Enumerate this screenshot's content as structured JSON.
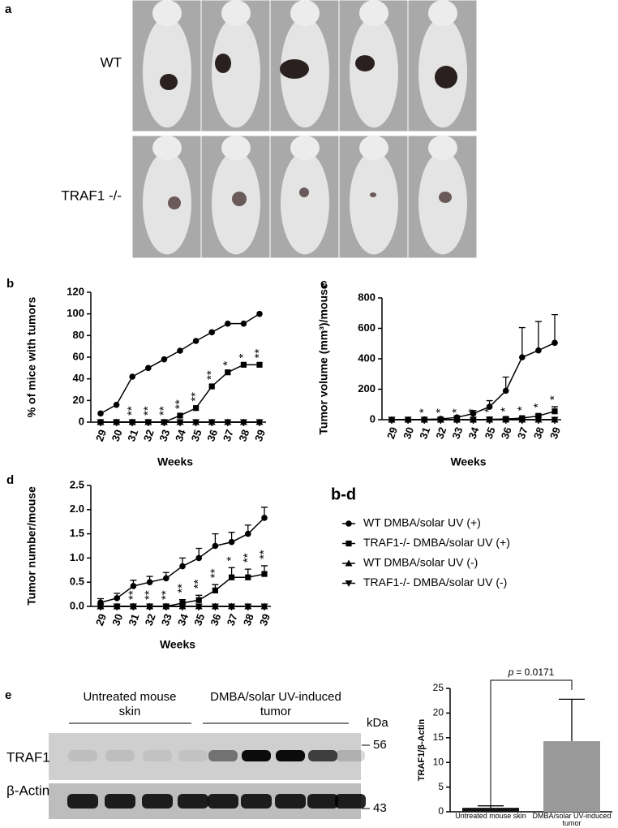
{
  "photos": {
    "label": "a",
    "rows": [
      "WT",
      "TRAF1 -/-"
    ]
  },
  "legend_title": "b-d",
  "chart_data": [
    {
      "type": "line",
      "label": "b",
      "ylabel": "% of mice with tumors",
      "xlabel": "Weeks",
      "categories": [
        29,
        30,
        31,
        32,
        33,
        34,
        35,
        36,
        37,
        38,
        39
      ],
      "ylim": [
        0,
        120
      ],
      "yticks": [
        0,
        20,
        40,
        60,
        80,
        100,
        120
      ],
      "series": [
        {
          "name": "WT DMBA/solar UV (+)",
          "color": "#000000",
          "marker": "circle",
          "values": [
            8,
            16,
            42,
            50,
            58,
            66,
            75,
            83,
            91,
            91,
            100
          ]
        },
        {
          "name": "TRAF1-/- DMBA/solar UV (+)",
          "color": "#000000",
          "marker": "square",
          "values": [
            0,
            0,
            0,
            0,
            0,
            6,
            13,
            33,
            46,
            53,
            53
          ]
        },
        {
          "name": "WT DMBA/solar UV (-)",
          "color": "#000000",
          "marker": "triangle-up",
          "values": [
            0,
            0,
            0,
            0,
            0,
            0,
            0,
            0,
            0,
            0,
            0
          ]
        },
        {
          "name": "TRAF1-/- DMBA/solar UV (-)",
          "color": "#000000",
          "marker": "triangle-down",
          "values": [
            0,
            0,
            0,
            0,
            0,
            0,
            0,
            0,
            0,
            0,
            0
          ]
        }
      ],
      "significance": [
        null,
        null,
        "**",
        "**",
        "**",
        "**",
        "**",
        "**",
        "*",
        "*",
        "**"
      ]
    },
    {
      "type": "line",
      "label": "c",
      "ylabel": "Tumor volume (mm³)/mouse",
      "xlabel": "Weeks",
      "categories": [
        29,
        30,
        31,
        32,
        33,
        34,
        35,
        36,
        37,
        38,
        39
      ],
      "ylim": [
        0,
        800
      ],
      "yticks": [
        0,
        200,
        400,
        600,
        800
      ],
      "series": [
        {
          "color": "#000000",
          "marker": "circle",
          "values": [
            0,
            0,
            2,
            5,
            15,
            40,
            85,
            190,
            410,
            455,
            505
          ],
          "errors": [
            0,
            0,
            2,
            5,
            10,
            20,
            40,
            90,
            195,
            190,
            185
          ]
        },
        {
          "color": "#000000",
          "marker": "square",
          "values": [
            0,
            0,
            0,
            0,
            0,
            0,
            2,
            5,
            10,
            25,
            55
          ],
          "errors": [
            0,
            0,
            0,
            0,
            0,
            0,
            2,
            3,
            5,
            10,
            30
          ]
        },
        {
          "color": "#000000",
          "marker": "triangle-up",
          "values": [
            0,
            0,
            0,
            0,
            0,
            0,
            0,
            0,
            0,
            0,
            0
          ]
        },
        {
          "color": "#000000",
          "marker": "triangle-down",
          "values": [
            0,
            0,
            0,
            0,
            0,
            0,
            0,
            0,
            0,
            0,
            0
          ]
        }
      ],
      "significance": [
        null,
        null,
        "*",
        "*",
        "*",
        "*",
        "*",
        "*",
        "*",
        "*",
        "*"
      ]
    },
    {
      "type": "line",
      "label": "d",
      "ylabel": "Tumor number/mouse",
      "xlabel": "Weeks",
      "categories": [
        29,
        30,
        31,
        32,
        33,
        34,
        35,
        36,
        37,
        38,
        39
      ],
      "ylim": [
        0,
        2.5
      ],
      "yticks": [
        {
          "value": 0,
          "label": "0.0"
        },
        {
          "value": 0.5,
          "label": "0.5"
        },
        {
          "value": 1,
          "label": "1.0"
        },
        {
          "value": 1.5,
          "label": "1.5"
        },
        {
          "value": 2,
          "label": "2.0"
        },
        {
          "value": 2.5,
          "label": "2.5"
        }
      ],
      "series": [
        {
          "color": "#000000",
          "marker": "circle",
          "values": [
            0.08,
            0.17,
            0.42,
            0.5,
            0.58,
            0.83,
            1.0,
            1.25,
            1.33,
            1.5,
            1.83
          ],
          "errors": [
            0.08,
            0.1,
            0.12,
            0.12,
            0.12,
            0.17,
            0.2,
            0.25,
            0.2,
            0.18,
            0.22
          ]
        },
        {
          "color": "#000000",
          "marker": "square",
          "values": [
            0,
            0,
            0,
            0,
            0,
            0.07,
            0.13,
            0.33,
            0.6,
            0.6,
            0.67
          ],
          "errors": [
            0,
            0,
            0,
            0,
            0,
            0.07,
            0.1,
            0.12,
            0.2,
            0.17,
            0.17
          ]
        },
        {
          "color": "#000000",
          "marker": "triangle-up",
          "values": [
            0,
            0,
            0,
            0,
            0,
            0,
            0,
            0,
            0,
            0,
            0
          ]
        },
        {
          "color": "#000000",
          "marker": "triangle-down",
          "values": [
            0,
            0,
            0,
            0,
            0,
            0,
            0,
            0,
            0,
            0,
            0
          ]
        }
      ],
      "significance": [
        null,
        null,
        "**",
        "**",
        "**",
        "**",
        "**",
        "**",
        "*",
        "**",
        "**"
      ]
    },
    {
      "type": "bar",
      "ylabel": "TRAF1/β-Actin",
      "categories": [
        "Untreated mouse skin",
        "DMBA/solar UV-induced tumor"
      ],
      "values": [
        0.8,
        14.3
      ],
      "errors": [
        0.4,
        8.5
      ],
      "colors": [
        "#111111",
        "#999999"
      ],
      "ylim": [
        0,
        25
      ],
      "yticks": [
        0,
        5,
        10,
        15,
        20,
        25
      ],
      "p_label": "p",
      "p_value": "= 0.0171"
    }
  ],
  "blot": {
    "label": "e",
    "groups": [
      "Untreated mouse skin",
      "DMBA/solar UV-induced tumor"
    ],
    "unit": "kDa",
    "markers": [
      56,
      43
    ],
    "rows": [
      "TRAF1",
      "β-Actin"
    ]
  }
}
